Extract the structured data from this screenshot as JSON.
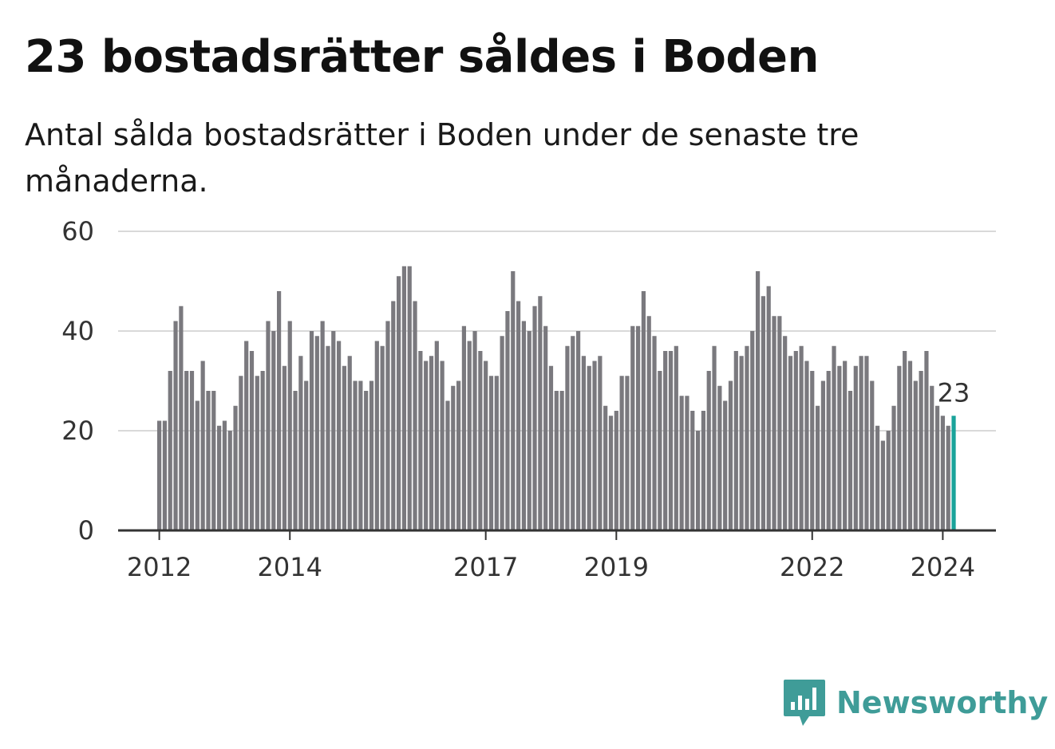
{
  "title": "23 bostadsrätter såldes i Boden",
  "subtitle": "Antal sålda bostadsrätter i Boden under de senaste tre månaderna.",
  "brand": "Newsworthy",
  "colors": {
    "bar": "#7a797e",
    "highlight": "#1aa39a",
    "grid": "#d9d9d9",
    "axis": "#333333",
    "brand": "#3f9c98"
  },
  "chart_data": {
    "type": "bar",
    "title": "23 bostadsrätter såldes i Boden",
    "ylim": [
      0,
      60
    ],
    "yticks": [
      0,
      20,
      40,
      60
    ],
    "xticks": [
      "2012",
      "2014",
      "2017",
      "2019",
      "2022",
      "2024"
    ],
    "xtick_indices": [
      0,
      24,
      60,
      84,
      120,
      144
    ],
    "grid": true,
    "highlight_label": "23",
    "values": [
      22,
      22,
      32,
      42,
      45,
      32,
      32,
      26,
      34,
      28,
      28,
      21,
      22,
      20,
      25,
      31,
      38,
      36,
      31,
      32,
      42,
      40,
      48,
      33,
      42,
      28,
      35,
      30,
      40,
      39,
      42,
      37,
      40,
      38,
      33,
      35,
      30,
      30,
      28,
      30,
      38,
      37,
      42,
      46,
      51,
      53,
      53,
      46,
      36,
      34,
      35,
      38,
      34,
      26,
      29,
      30,
      41,
      38,
      40,
      36,
      34,
      31,
      31,
      39,
      44,
      52,
      46,
      42,
      40,
      45,
      47,
      41,
      33,
      28,
      28,
      37,
      39,
      40,
      35,
      33,
      34,
      35,
      25,
      23,
      24,
      31,
      31,
      41,
      41,
      48,
      43,
      39,
      32,
      36,
      36,
      37,
      27,
      27,
      24,
      20,
      24,
      32,
      37,
      29,
      26,
      30,
      36,
      35,
      37,
      40,
      52,
      47,
      49,
      43,
      43,
      39,
      35,
      36,
      37,
      34,
      32,
      25,
      30,
      32,
      37,
      33,
      34,
      28,
      33,
      35,
      35,
      30,
      21,
      18,
      20,
      25,
      33,
      36,
      34,
      30,
      32,
      36,
      29,
      25,
      23,
      21,
      23
    ]
  }
}
